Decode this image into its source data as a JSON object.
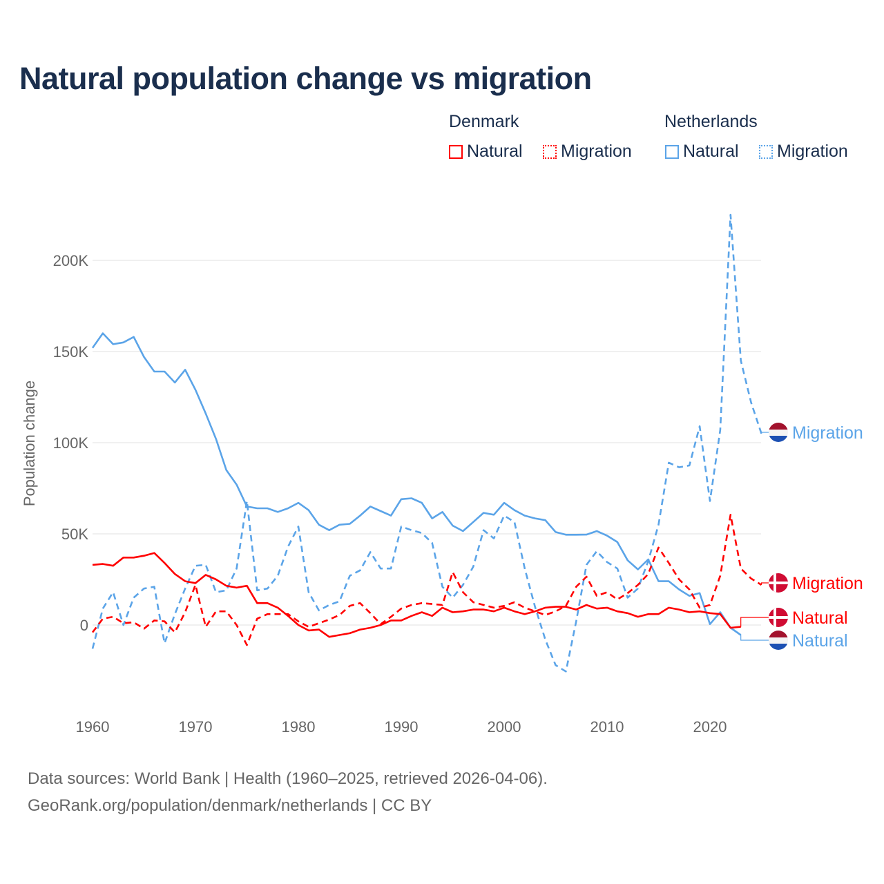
{
  "title": "Natural population change vs migration",
  "legend": {
    "groups": [
      {
        "name": "Denmark",
        "color": "#ff0000",
        "items": [
          "Natural",
          "Migration"
        ]
      },
      {
        "name": "Netherlands",
        "color": "#5ba4e8",
        "items": [
          "Natural",
          "Migration"
        ]
      }
    ]
  },
  "footer": {
    "line1": "Data sources: World Bank | Health (1960–2025, retrieved 2026-04-06).",
    "line2": "GeoRank.org/population/denmark/netherlands | CC BY"
  },
  "chart_data": {
    "type": "line",
    "title": "Natural population change vs migration",
    "xlabel": "",
    "ylabel": "Population change",
    "xlim": [
      1960,
      2025
    ],
    "ylim": [
      -35000,
      225000
    ],
    "x_ticks": [
      1960,
      1970,
      1980,
      1990,
      2000,
      2010,
      2020
    ],
    "x_tick_labels": [
      "1960",
      "1970",
      "1980",
      "1990",
      "2000",
      "2010",
      "2020"
    ],
    "y_ticks": [
      0,
      50000,
      100000,
      150000,
      200000
    ],
    "y_tick_labels": [
      "0",
      "50K",
      "100K",
      "150K",
      "200K"
    ],
    "grid": true,
    "legend_position": "top-right",
    "x_start": 1960,
    "series": [
      {
        "name": "Denmark Natural",
        "country": "Denmark",
        "label": "Natural",
        "color": "#ff0000",
        "dash": "solid",
        "values": [
          33000,
          33500,
          32500,
          37000,
          37000,
          38000,
          39500,
          34000,
          28000,
          24000,
          23000,
          27500,
          25000,
          21500,
          20500,
          21500,
          12000,
          12000,
          9500,
          5000,
          0,
          -3000,
          -2500,
          -6500,
          -5500,
          -4500,
          -2500,
          -1500,
          0,
          2500,
          2500,
          5000,
          7000,
          5000,
          9500,
          7000,
          7500,
          8500,
          8500,
          7500,
          9500,
          7500,
          6000,
          7500,
          9500,
          10000,
          10000,
          8500,
          11000,
          9000,
          9500,
          7500,
          6500,
          4500,
          6000,
          6000,
          9500,
          8500,
          7000,
          7500,
          6500,
          6000,
          -1500,
          -1000
        ]
      },
      {
        "name": "Denmark Migration",
        "country": "Denmark",
        "label": "Migration",
        "color": "#ff0000",
        "dash": "dashed",
        "values": [
          -4000,
          3500,
          4500,
          1000,
          1500,
          -2000,
          2500,
          2000,
          -4000,
          7000,
          22000,
          -1000,
          7500,
          7500,
          0,
          -11000,
          3500,
          6000,
          6000,
          6000,
          2000,
          -1000,
          1000,
          3000,
          5500,
          10500,
          12000,
          6500,
          500,
          4500,
          9000,
          11000,
          12000,
          11500,
          11000,
          29000,
          18000,
          12500,
          11000,
          9500,
          10500,
          12500,
          9500,
          7500,
          5500,
          7500,
          10500,
          21000,
          26500,
          16000,
          18000,
          14000,
          17500,
          22000,
          28000,
          42500,
          34000,
          25000,
          19500,
          9500,
          11000,
          27000,
          60500,
          31000,
          25500,
          22000
        ]
      },
      {
        "name": "Netherlands Natural",
        "country": "Netherlands",
        "label": "Natural",
        "color": "#5ba4e8",
        "dash": "solid",
        "values": [
          152000,
          160000,
          154000,
          155000,
          158000,
          147000,
          139000,
          139000,
          133000,
          140000,
          129000,
          116000,
          102000,
          85000,
          77000,
          65000,
          64000,
          64000,
          62000,
          64000,
          67000,
          63000,
          55000,
          52000,
          55000,
          55500,
          60000,
          65000,
          62500,
          60000,
          69000,
          69500,
          67000,
          58500,
          62000,
          54500,
          51500,
          56500,
          61500,
          60500,
          67000,
          63000,
          60000,
          58500,
          57500,
          51000,
          49500,
          49500,
          49600,
          51500,
          49000,
          45500,
          35500,
          30500,
          36000,
          24000,
          24000,
          19500,
          16000,
          17500,
          500,
          7000,
          -1500,
          -5500
        ]
      },
      {
        "name": "Netherlands Migration",
        "country": "Netherlands",
        "label": "Migration",
        "color": "#5ba4e8",
        "dash": "dashed",
        "values": [
          -13000,
          9000,
          18000,
          0,
          15000,
          20000,
          21000,
          -10000,
          6000,
          20000,
          32500,
          33000,
          18000,
          19000,
          31000,
          68000,
          19000,
          20000,
          27000,
          43000,
          54000,
          18000,
          8000,
          11000,
          13000,
          27000,
          30000,
          40000,
          31000,
          31000,
          54000,
          52000,
          50500,
          45000,
          21000,
          15000,
          22000,
          32000,
          52000,
          47500,
          60000,
          56500,
          31000,
          10000,
          -8000,
          -22000,
          -25500,
          2000,
          33000,
          40500,
          34500,
          31000,
          15000,
          20000,
          35000,
          55000,
          89000,
          86500,
          87500,
          109000,
          68000,
          107000,
          225000,
          145000,
          122000,
          105000
        ]
      }
    ],
    "end_labels": [
      {
        "text": "Migration",
        "series": 3,
        "flag": "netherlands"
      },
      {
        "text": "Migration",
        "series": 1,
        "flag": "denmark"
      },
      {
        "text": "Natural",
        "series": 0,
        "flag": "denmark"
      },
      {
        "text": "Natural",
        "series": 2,
        "flag": "netherlands"
      }
    ]
  }
}
